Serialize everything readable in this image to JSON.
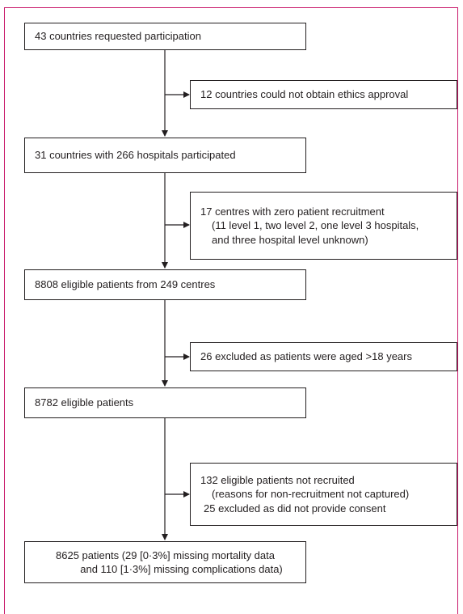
{
  "steps": [
    {
      "lines": [
        "43 countries requested participation"
      ]
    },
    {
      "lines": [
        "31 countries with 266 hospitals participated"
      ]
    },
    {
      "lines": [
        "8808 eligible patients from 249 centres"
      ]
    },
    {
      "lines": [
        "8782 eligible patients"
      ]
    },
    {
      "lines": [
        "8625 patients (29 [0·3%] missing mortality data",
        "and 110 [1·3%] missing complications data)"
      ]
    }
  ],
  "exclusions": [
    {
      "lines": [
        "12 countries could not obtain ethics approval"
      ]
    },
    {
      "lines": [
        "17 centres with zero patient recruitment",
        "(11 level 1, two level 2, one level 3 hospitals,",
        "and three hospital level unknown)"
      ]
    },
    {
      "lines": [
        "26 excluded as patients were aged >18 years"
      ]
    },
    {
      "lines": [
        "132 eligible patients not recruited",
        "(reasons for non-recruitment not captured)",
        "25 excluded as did not provide consent"
      ]
    }
  ]
}
